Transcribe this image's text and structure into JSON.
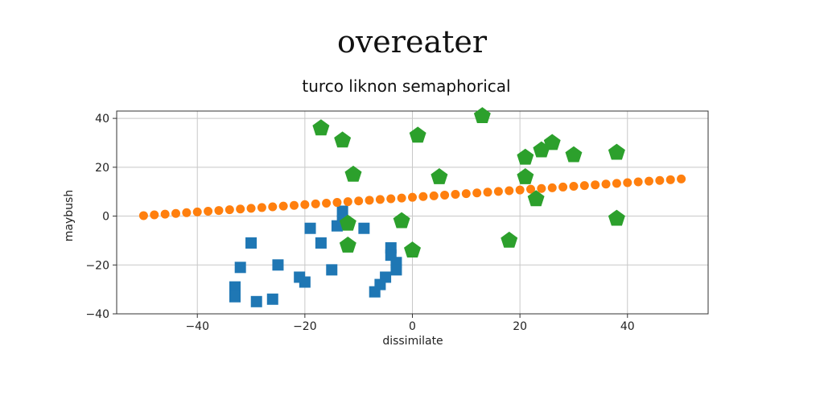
{
  "chart_data": {
    "type": "scatter",
    "suptitle": "overeater",
    "title": "turco liknon semaphorical",
    "xlabel": "dissimilate",
    "ylabel": "maybush",
    "xlim": [
      -55,
      55
    ],
    "ylim": [
      -40,
      43
    ],
    "xticks": [
      -40,
      -20,
      0,
      20,
      40
    ],
    "yticks": [
      -40,
      -20,
      0,
      20,
      40
    ],
    "xtick_labels": [
      "−40",
      "−20",
      "0",
      "20",
      "40"
    ],
    "ytick_labels": [
      "−40",
      "−20",
      "0",
      "20",
      "40"
    ],
    "grid": true,
    "legend": "none",
    "series": [
      {
        "marker": "square",
        "color": "#1f77b4",
        "points": [
          [
            -30,
            -11
          ],
          [
            -32,
            -21
          ],
          [
            -33,
            -29
          ],
          [
            -33,
            -33
          ],
          [
            -29,
            -35
          ],
          [
            -26,
            -34
          ],
          [
            -25,
            -20
          ],
          [
            -21,
            -25
          ],
          [
            -20,
            -27
          ],
          [
            -19,
            -5
          ],
          [
            -17,
            -11
          ],
          [
            -15,
            -22
          ],
          [
            -14,
            -4
          ],
          [
            -13,
            -2
          ],
          [
            -13,
            2
          ],
          [
            -9,
            -5
          ],
          [
            -4,
            -13
          ],
          [
            -4,
            -16
          ],
          [
            -3,
            -19
          ],
          [
            -3,
            -22
          ],
          [
            -5,
            -25
          ],
          [
            -6,
            -28
          ],
          [
            -7,
            -31
          ]
        ]
      },
      {
        "marker": "circle",
        "color": "#ff7f0e",
        "points": [
          [
            -50,
            0.2
          ],
          [
            -48,
            0.5
          ],
          [
            -46,
            0.8
          ],
          [
            -44,
            1.1
          ],
          [
            -42,
            1.4
          ],
          [
            -40,
            1.7
          ],
          [
            -38,
            2.0
          ],
          [
            -36,
            2.3
          ],
          [
            -34,
            2.6
          ],
          [
            -32,
            2.9
          ],
          [
            -30,
            3.2
          ],
          [
            -28,
            3.5
          ],
          [
            -26,
            3.8
          ],
          [
            -24,
            4.1
          ],
          [
            -22,
            4.4
          ],
          [
            -20,
            4.7
          ],
          [
            -18,
            5.0
          ],
          [
            -16,
            5.3
          ],
          [
            -14,
            5.6
          ],
          [
            -12,
            5.9
          ],
          [
            -10,
            6.2
          ],
          [
            -8,
            6.5
          ],
          [
            -6,
            6.8
          ],
          [
            -4,
            7.1
          ],
          [
            -2,
            7.4
          ],
          [
            0,
            7.7
          ],
          [
            2,
            8.0
          ],
          [
            4,
            8.3
          ],
          [
            6,
            8.6
          ],
          [
            8,
            8.9
          ],
          [
            10,
            9.2
          ],
          [
            12,
            9.5
          ],
          [
            14,
            9.8
          ],
          [
            16,
            10.1
          ],
          [
            18,
            10.4
          ],
          [
            20,
            10.7
          ],
          [
            22,
            11.0
          ],
          [
            24,
            11.3
          ],
          [
            26,
            11.6
          ],
          [
            28,
            11.9
          ],
          [
            30,
            12.2
          ],
          [
            32,
            12.5
          ],
          [
            34,
            12.8
          ],
          [
            36,
            13.1
          ],
          [
            38,
            13.4
          ],
          [
            40,
            13.7
          ],
          [
            42,
            14.0
          ],
          [
            44,
            14.3
          ],
          [
            46,
            14.6
          ],
          [
            48,
            14.9
          ],
          [
            50,
            15.2
          ]
        ]
      },
      {
        "marker": "pentagon",
        "color": "#2ca02c",
        "points": [
          [
            -17,
            36
          ],
          [
            -13,
            31
          ],
          [
            -11,
            17
          ],
          [
            -12,
            -12
          ],
          [
            -12,
            -3
          ],
          [
            -2,
            -2
          ],
          [
            0,
            -14
          ],
          [
            1,
            33
          ],
          [
            5,
            16
          ],
          [
            13,
            41
          ],
          [
            18,
            -10
          ],
          [
            21,
            24
          ],
          [
            21,
            16
          ],
          [
            23,
            7
          ],
          [
            24,
            27
          ],
          [
            26,
            30
          ],
          [
            30,
            25
          ],
          [
            38,
            26
          ],
          [
            38,
            -1
          ]
        ]
      }
    ]
  }
}
